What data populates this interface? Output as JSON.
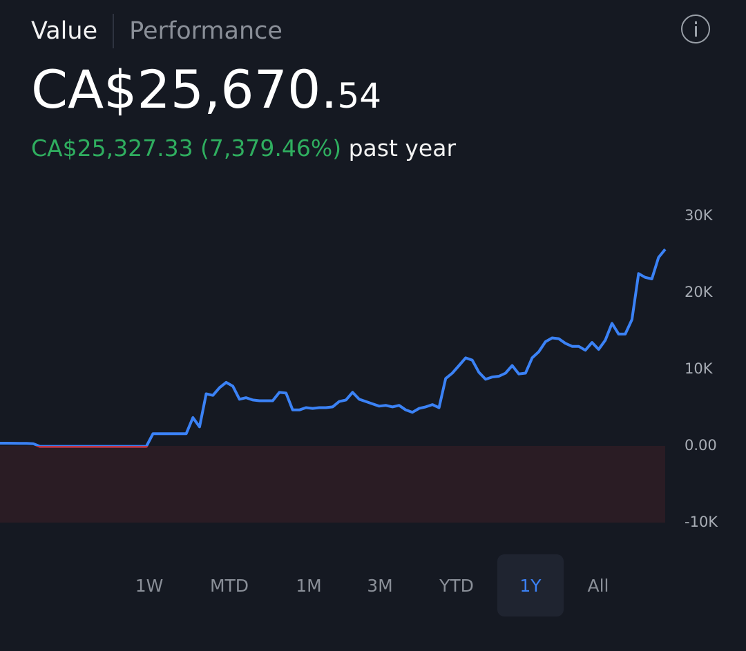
{
  "header": {
    "tabs": [
      "Value",
      "Performance"
    ],
    "amount_main": "CA$25,670.",
    "amount_cents": "54",
    "change": "CA$25,327.33 (7,379.46%)",
    "change_period": "past year"
  },
  "chart_data": {
    "type": "line",
    "color": "#3b82f6",
    "negative_color": "#c0394b",
    "values": [
      360,
      360,
      350,
      340,
      340,
      300,
      -50,
      -50,
      -50,
      -50,
      -50,
      -50,
      -50,
      -50,
      -50,
      -50,
      -50,
      -50,
      -50,
      -50,
      -50,
      -50,
      -50,
      1600,
      1600,
      1600,
      1600,
      1600,
      1600,
      3700,
      2500,
      6800,
      6600,
      7600,
      8300,
      7800,
      6100,
      6300,
      6000,
      5900,
      5900,
      5900,
      7000,
      6900,
      4700,
      4700,
      5000,
      4900,
      5000,
      5000,
      5100,
      5800,
      6000,
      7000,
      6100,
      5800,
      5500,
      5200,
      5300,
      5100,
      5300,
      4700,
      4400,
      4900,
      5100,
      5400,
      5000,
      8800,
      9500,
      10500,
      11500,
      11200,
      9600,
      8700,
      9000,
      9100,
      9500,
      10500,
      9400,
      9500,
      11500,
      12300,
      13600,
      14100,
      14000,
      13400,
      13000,
      13000,
      12500,
      13500,
      12600,
      13800,
      16000,
      14600,
      14600,
      16500,
      22500,
      22000,
      21800,
      24600,
      25670
    ],
    "ylim": [
      -10000,
      30000
    ],
    "yticks": [
      {
        "value": 30000,
        "label": "30K"
      },
      {
        "value": 20000,
        "label": "20K"
      },
      {
        "value": 10000,
        "label": "10K"
      },
      {
        "value": 0,
        "label": "0.00"
      },
      {
        "value": -10000,
        "label": "-10K"
      }
    ]
  },
  "ranges": {
    "options": [
      "1W",
      "MTD",
      "1M",
      "3M",
      "YTD",
      "1Y",
      "All"
    ],
    "selected": 5
  }
}
